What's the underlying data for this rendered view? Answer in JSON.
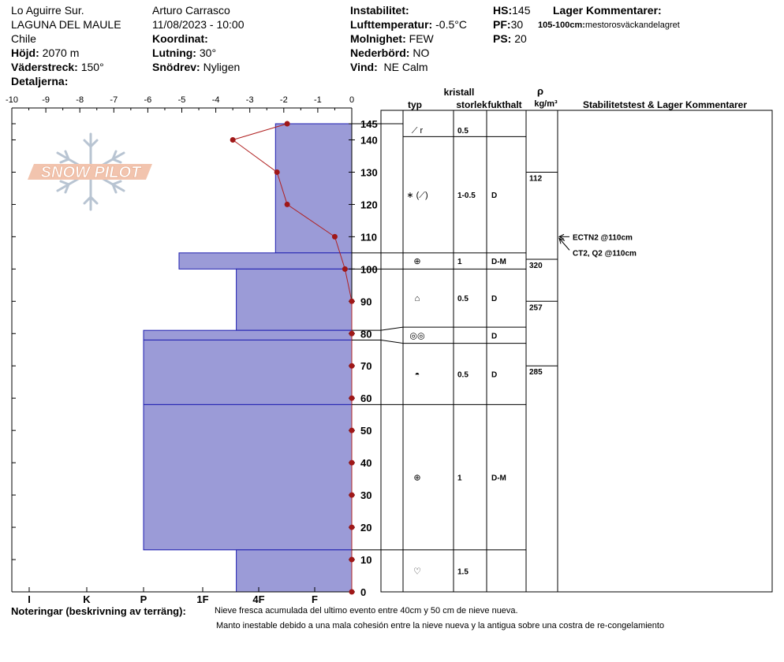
{
  "header": {
    "location": "Lo Aguirre Sur.",
    "region": "LAGUNA DEL MAULE",
    "country": "Chile",
    "elevation_label": "Höjd:",
    "elevation_value": "2070 m",
    "aspect_label": "Väderstreck:",
    "aspect_value": "150°",
    "details_label": "Detaljerna:",
    "observer": "Arturo Carrasco",
    "datetime": "11/08/2023 - 10:00",
    "coord_label": "Koordinat:",
    "slope_label": "Lutning:",
    "slope_value": "30°",
    "drift_label": "Snödrev:",
    "drift_value": "Nyligen",
    "instability_label": "Instabilitet:",
    "airtemp_label": "Lufttemperatur:",
    "airtemp_value": "-0.5°C",
    "sky_label": "Molnighet:",
    "sky_value": "FEW",
    "precip_label": "Nederbörd:",
    "precip_value": "NO",
    "wind_label": "Vind:",
    "wind_value": "NE Calm",
    "hs_label": "HS:",
    "hs_value": "145",
    "pf_label": "PF:",
    "pf_value": "30",
    "ps_label": "PS:",
    "ps_value": "20",
    "layer_comments_label": "Lager Kommentarer:",
    "layer_comment_range": "105-100cm:",
    "layer_comment_text": "mestorosväckandelagret"
  },
  "columns": {
    "crystal": "kristall",
    "type": "typ",
    "size": "storlek",
    "moisture": "fukthalt",
    "rho": "ρ",
    "density_unit": "kg/m³",
    "stability": "Stabilitetstest & Lager Kommentarer"
  },
  "watermark": "SNOW PILOT",
  "chart_data": {
    "type": "snow-profile",
    "temperature_axis": {
      "range": [
        -10,
        0
      ],
      "ticks": [
        "-10",
        "-9",
        "-8",
        "-7",
        "-6",
        "-5",
        "-4",
        "-3",
        "-2",
        "-1",
        "0"
      ]
    },
    "height_axis": {
      "range": [
        0,
        145
      ],
      "ticks": [
        0,
        10,
        20,
        30,
        40,
        50,
        60,
        70,
        80,
        90,
        100,
        110,
        120,
        130,
        140,
        145
      ]
    },
    "hardness_axis": {
      "labels": [
        "I",
        "K",
        "P",
        "1F",
        "4F",
        "F"
      ],
      "values": [
        5,
        4,
        3,
        2,
        1,
        0
      ]
    },
    "temperature_profile": [
      {
        "height": 145,
        "temp": -1.9
      },
      {
        "height": 140,
        "temp": -3.5
      },
      {
        "height": 130,
        "temp": -2.2
      },
      {
        "height": 120,
        "temp": -1.9
      },
      {
        "height": 110,
        "temp": -0.5
      },
      {
        "height": 100,
        "temp": -0.2
      },
      {
        "height": 90,
        "temp": 0
      },
      {
        "height": 80,
        "temp": 0
      },
      {
        "height": 70,
        "temp": 0
      },
      {
        "height": 60,
        "temp": 0
      },
      {
        "height": 50,
        "temp": 0
      },
      {
        "height": 40,
        "temp": 0
      },
      {
        "height": 30,
        "temp": 0
      },
      {
        "height": 20,
        "temp": 0
      },
      {
        "height": 10,
        "temp": 0
      },
      {
        "height": 0,
        "temp": 0
      }
    ],
    "hardness_layers": [
      {
        "top": 145,
        "bottom": 105,
        "hardness": 0.7
      },
      {
        "top": 105,
        "bottom": 100,
        "hardness": 2.4
      },
      {
        "top": 100,
        "bottom": 81,
        "hardness": 1.4
      },
      {
        "top": 81,
        "bottom": 78,
        "hardness": 3
      },
      {
        "top": 78,
        "bottom": 58,
        "hardness": 3
      },
      {
        "top": 58,
        "bottom": 13,
        "hardness": 3
      },
      {
        "top": 13,
        "bottom": 0,
        "hardness": 1.4
      }
    ],
    "table_layers": [
      {
        "top": 145,
        "bottom": 141,
        "type": "⟋ r",
        "size": "0.5",
        "moisture": ""
      },
      {
        "top": 141,
        "bottom": 105,
        "type": "∗ (⟋)",
        "size": "1-0.5",
        "moisture": "D"
      },
      {
        "top": 105,
        "bottom": 100,
        "type": "⊕",
        "size": "1",
        "moisture": "D-M"
      },
      {
        "top": 100,
        "bottom": 82,
        "type": "⌂",
        "size": "0.5",
        "moisture": "D"
      },
      {
        "top": 82,
        "bottom": 77,
        "type": "◎◎",
        "size": "",
        "moisture": "D"
      },
      {
        "top": 77,
        "bottom": 58,
        "type": "◓",
        "size": "0.5",
        "moisture": "D"
      },
      {
        "top": 58,
        "bottom": 13,
        "type": "⊕",
        "size": "1",
        "moisture": "D-M"
      },
      {
        "top": 13,
        "bottom": 0,
        "type": "♡",
        "size": "1.5",
        "moisture": ""
      }
    ],
    "density": [
      {
        "top": 130,
        "value": "112"
      },
      {
        "top": 103,
        "value": "320"
      },
      {
        "top": 90,
        "value": "257"
      },
      {
        "top": 70,
        "value": "285"
      }
    ],
    "density_boundaries": [
      130,
      103,
      90,
      70
    ],
    "stability_tests": [
      {
        "height": 110,
        "label": "ECTN2 @110cm"
      },
      {
        "height": 110,
        "label": "CT2, Q2 @110cm"
      }
    ]
  },
  "notes": {
    "label": "Noteringar (beskrivning av terräng):",
    "line1": "Nieve fresca acumulada del ultimo evento entre 40cm  y 50 cm de nieve nueva.",
    "line2": "Manto inestable debido a una mala cohesión entre la nieve nueva y la antigua sobre una costra de re-congelamiento"
  }
}
